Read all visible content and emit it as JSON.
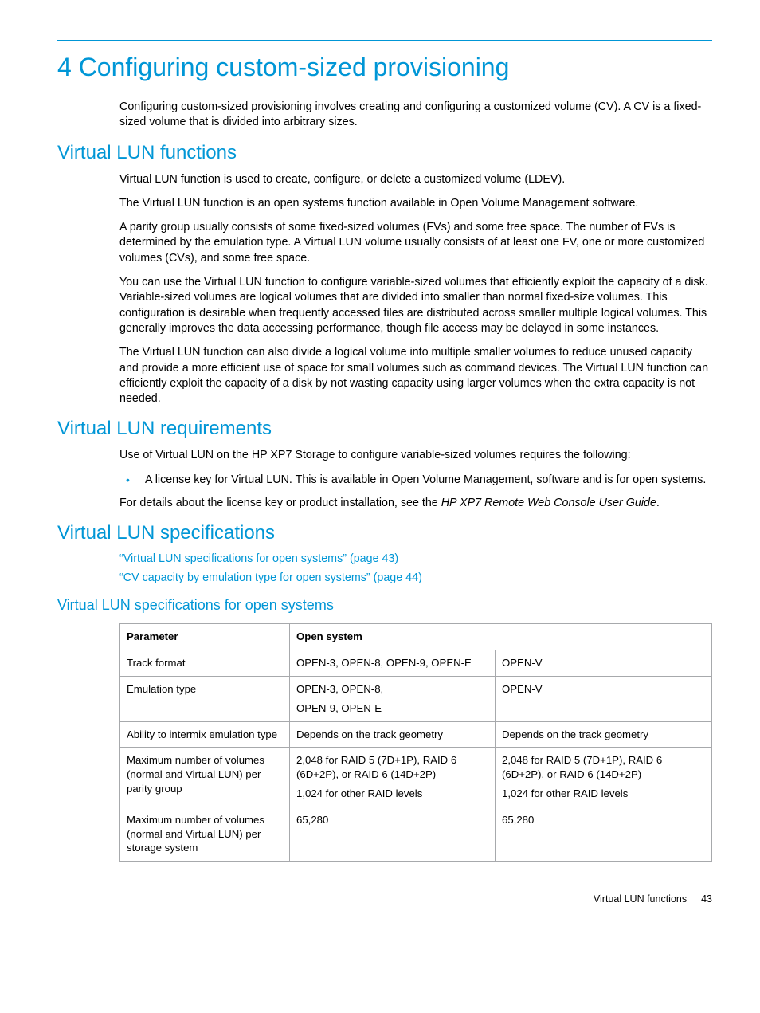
{
  "chapter_title": "4 Configuring custom-sized provisioning",
  "intro": "Configuring custom-sized provisioning involves creating and configuring a customized volume (CV). A CV is a fixed-sized volume that is divided into arbitrary sizes.",
  "sec1": {
    "title": "Virtual LUN functions",
    "p1": "Virtual LUN function is used to create, configure, or delete a customized volume (LDEV).",
    "p2": "The Virtual LUN function is an open systems function available in Open Volume Management software.",
    "p3": "A parity group usually consists of some fixed-sized volumes (FVs) and some free space. The number of FVs is determined by the emulation type. A Virtual LUN volume usually consists of at least one FV, one or more customized volumes (CVs), and some free space.",
    "p4": "You can use the Virtual LUN function to configure variable-sized volumes that efficiently exploit the capacity of a disk. Variable-sized volumes are logical volumes that are divided into smaller than normal fixed-size volumes. This configuration is desirable when frequently accessed files are distributed across smaller multiple logical volumes. This generally improves the data accessing performance, though file access may be delayed in some instances.",
    "p5": "The Virtual LUN function can also divide a logical volume into multiple smaller volumes to reduce unused capacity and provide a more efficient use of space for small volumes such as command devices. The Virtual LUN function can efficiently exploit the capacity of a disk by not wasting capacity using larger volumes when the extra capacity is not needed."
  },
  "sec2": {
    "title": "Virtual LUN requirements",
    "p1": "Use of Virtual LUN on the HP XP7 Storage to configure variable-sized volumes requires the following:",
    "bullet1": "A license key for Virtual LUN. This is available in Open Volume Management, software and is for open systems.",
    "p2a": "For details about the license key or product installation, see the ",
    "p2b": "HP XP7 Remote Web Console User Guide",
    "p2c": "."
  },
  "sec3": {
    "title": "Virtual LUN specifications",
    "link1": "“Virtual LUN specifications for open systems” (page 43)",
    "link2": "“CV capacity by emulation type for open systems” (page 44)"
  },
  "sec4": {
    "title": "Virtual LUN specifications for open systems",
    "table": {
      "head": {
        "c0": "Parameter",
        "c1": "Open system"
      },
      "r0": {
        "c0": "Track format",
        "c1": "OPEN-3, OPEN-8, OPEN-9, OPEN-E",
        "c2": "OPEN-V"
      },
      "r1": {
        "c0": "Emulation type",
        "c1a": "OPEN-3, OPEN-8,",
        "c1b": "OPEN-9, OPEN-E",
        "c2": "OPEN-V"
      },
      "r2": {
        "c0": "Ability to intermix emulation type",
        "c1": "Depends on the track geometry",
        "c2": "Depends on the track geometry"
      },
      "r3": {
        "c0": "Maximum number of volumes (normal and Virtual LUN) per parity group",
        "c1a": "2,048 for RAID 5 (7D+1P), RAID 6 (6D+2P), or RAID 6 (14D+2P)",
        "c1b": "1,024 for other RAID levels",
        "c2a": "2,048 for RAID 5 (7D+1P), RAID 6 (6D+2P), or RAID 6 (14D+2P)",
        "c2b": "1,024 for other RAID levels"
      },
      "r4": {
        "c0": "Maximum number of volumes (normal and Virtual LUN) per storage system",
        "c1": "65,280",
        "c2": "65,280"
      }
    }
  },
  "footer": {
    "section": "Virtual LUN functions",
    "page": "43"
  }
}
